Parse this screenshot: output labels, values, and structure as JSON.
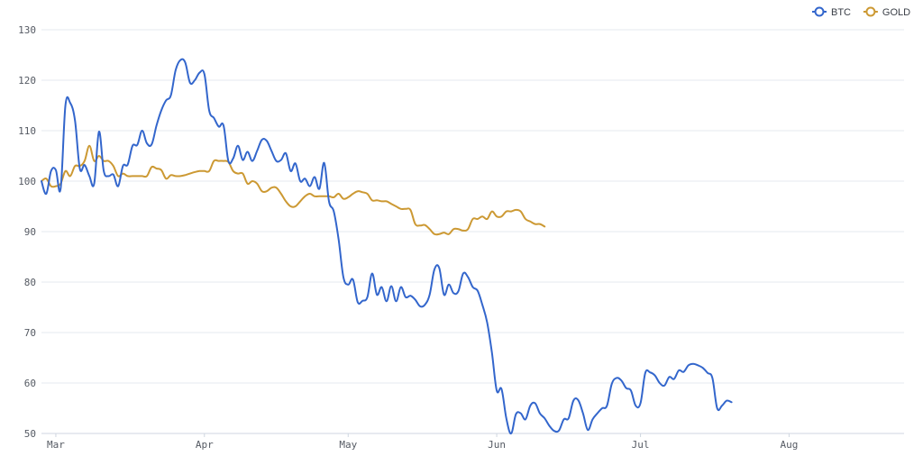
{
  "chart_data": {
    "type": "line",
    "title": "",
    "xlabel": "",
    "ylabel": "",
    "ylim": [
      50,
      130
    ],
    "yticks": [
      50,
      60,
      70,
      80,
      90,
      100,
      110,
      120,
      130
    ],
    "xlim": [
      "2022-02-26",
      "2022-08-25"
    ],
    "xticks": [
      {
        "label": "Mar",
        "date": "2022-03-01"
      },
      {
        "label": "Apr",
        "date": "2022-04-01"
      },
      {
        "label": "May",
        "date": "2022-05-01"
      },
      {
        "label": "Jun",
        "date": "2022-06-01"
      },
      {
        "label": "Jul",
        "date": "2022-07-01"
      },
      {
        "label": "Aug",
        "date": "2022-08-01"
      }
    ],
    "grid": true,
    "legend_position": "top-right",
    "series": [
      {
        "name": "BTC",
        "color": "#3366cc",
        "points": [
          [
            "2022-02-26",
            100
          ],
          [
            "2022-02-27",
            97.5
          ],
          [
            "2022-02-28",
            102
          ],
          [
            "2022-03-01",
            102.2
          ],
          [
            "2022-03-02",
            98.5
          ],
          [
            "2022-03-03",
            115
          ],
          [
            "2022-03-04",
            115.5
          ],
          [
            "2022-03-05",
            112
          ],
          [
            "2022-03-06",
            102.5
          ],
          [
            "2022-03-07",
            103.2
          ],
          [
            "2022-03-08",
            101
          ],
          [
            "2022-03-09",
            99.5
          ],
          [
            "2022-03-10",
            109.8
          ],
          [
            "2022-03-11",
            102
          ],
          [
            "2022-03-12",
            101
          ],
          [
            "2022-03-13",
            101.3
          ],
          [
            "2022-03-14",
            99
          ],
          [
            "2022-03-15",
            103
          ],
          [
            "2022-03-16",
            103.3
          ],
          [
            "2022-03-17",
            107
          ],
          [
            "2022-03-18",
            107.2
          ],
          [
            "2022-03-19",
            110
          ],
          [
            "2022-03-20",
            107.5
          ],
          [
            "2022-03-21",
            107.3
          ],
          [
            "2022-03-22",
            111
          ],
          [
            "2022-03-23",
            114
          ],
          [
            "2022-03-24",
            116
          ],
          [
            "2022-03-25",
            117
          ],
          [
            "2022-03-26",
            122
          ],
          [
            "2022-03-27",
            124
          ],
          [
            "2022-03-28",
            123.5
          ],
          [
            "2022-03-29",
            119.5
          ],
          [
            "2022-03-30",
            120
          ],
          [
            "2022-03-31",
            121.5
          ],
          [
            "2022-04-01",
            121.2
          ],
          [
            "2022-04-02",
            114
          ],
          [
            "2022-04-03",
            112.5
          ],
          [
            "2022-04-04",
            110.8
          ],
          [
            "2022-04-05",
            111
          ],
          [
            "2022-04-06",
            104
          ],
          [
            "2022-04-07",
            104.5
          ],
          [
            "2022-04-08",
            107
          ],
          [
            "2022-04-09",
            104.2
          ],
          [
            "2022-04-10",
            105.8
          ],
          [
            "2022-04-11",
            104
          ],
          [
            "2022-04-12",
            106
          ],
          [
            "2022-04-13",
            108.2
          ],
          [
            "2022-04-14",
            108
          ],
          [
            "2022-04-15",
            106
          ],
          [
            "2022-04-16",
            104
          ],
          [
            "2022-04-17",
            104.2
          ],
          [
            "2022-04-18",
            105.5
          ],
          [
            "2022-04-19",
            102
          ],
          [
            "2022-04-20",
            103.5
          ],
          [
            "2022-04-21",
            100
          ],
          [
            "2022-04-22",
            100.5
          ],
          [
            "2022-04-23",
            99
          ],
          [
            "2022-04-24",
            100.8
          ],
          [
            "2022-04-25",
            98.5
          ],
          [
            "2022-04-26",
            103.6
          ],
          [
            "2022-04-27",
            96
          ],
          [
            "2022-04-28",
            94
          ],
          [
            "2022-04-29",
            88.5
          ],
          [
            "2022-04-30",
            81
          ],
          [
            "2022-05-01",
            79.5
          ],
          [
            "2022-05-02",
            80.5
          ],
          [
            "2022-05-03",
            76
          ],
          [
            "2022-05-04",
            76.3
          ],
          [
            "2022-05-05",
            77
          ],
          [
            "2022-05-06",
            81.7
          ],
          [
            "2022-05-07",
            77.5
          ],
          [
            "2022-05-08",
            79
          ],
          [
            "2022-05-09",
            76.2
          ],
          [
            "2022-05-10",
            79.2
          ],
          [
            "2022-05-11",
            76.2
          ],
          [
            "2022-05-12",
            79
          ],
          [
            "2022-05-13",
            77
          ],
          [
            "2022-05-14",
            77.3
          ],
          [
            "2022-05-15",
            76.5
          ],
          [
            "2022-05-16",
            75.2
          ],
          [
            "2022-05-17",
            75.5
          ],
          [
            "2022-05-18",
            77.5
          ],
          [
            "2022-05-19",
            82.5
          ],
          [
            "2022-05-20",
            82.8
          ],
          [
            "2022-05-21",
            77.5
          ],
          [
            "2022-05-22",
            79.5
          ],
          [
            "2022-05-23",
            77.8
          ],
          [
            "2022-05-24",
            78.2
          ],
          [
            "2022-05-25",
            81.7
          ],
          [
            "2022-05-26",
            81
          ],
          [
            "2022-05-27",
            79
          ],
          [
            "2022-05-28",
            78.3
          ],
          [
            "2022-05-29",
            75.5
          ],
          [
            "2022-05-30",
            72
          ],
          [
            "2022-05-31",
            66
          ],
          [
            "2022-06-01",
            58.5
          ],
          [
            "2022-06-02",
            58.8
          ],
          [
            "2022-06-03",
            53
          ],
          [
            "2022-06-04",
            50
          ],
          [
            "2022-06-05",
            53.8
          ],
          [
            "2022-06-06",
            54
          ],
          [
            "2022-06-07",
            52.8
          ],
          [
            "2022-06-08",
            55.5
          ],
          [
            "2022-06-09",
            56
          ],
          [
            "2022-06-10",
            54
          ],
          [
            "2022-06-11",
            53
          ],
          [
            "2022-06-12",
            51.5
          ],
          [
            "2022-06-13",
            50.5
          ],
          [
            "2022-06-14",
            50.6
          ],
          [
            "2022-06-15",
            52.8
          ],
          [
            "2022-06-16",
            53
          ],
          [
            "2022-06-17",
            56.5
          ],
          [
            "2022-06-18",
            56.6
          ],
          [
            "2022-06-19",
            54
          ],
          [
            "2022-06-20",
            50.7
          ],
          [
            "2022-06-21",
            52.8
          ],
          [
            "2022-06-22",
            54
          ],
          [
            "2022-06-23",
            55
          ],
          [
            "2022-06-24",
            55.5
          ],
          [
            "2022-06-25",
            59.8
          ],
          [
            "2022-06-26",
            61
          ],
          [
            "2022-06-27",
            60.5
          ],
          [
            "2022-06-28",
            59
          ],
          [
            "2022-06-29",
            58.5
          ],
          [
            "2022-06-30",
            55.5
          ],
          [
            "2022-07-01",
            56
          ],
          [
            "2022-07-02",
            62
          ],
          [
            "2022-07-03",
            62.1
          ],
          [
            "2022-07-04",
            61.5
          ],
          [
            "2022-07-05",
            60
          ],
          [
            "2022-07-06",
            59.5
          ],
          [
            "2022-07-07",
            61.2
          ],
          [
            "2022-07-08",
            60.8
          ],
          [
            "2022-07-09",
            62.5
          ],
          [
            "2022-07-10",
            62.2
          ],
          [
            "2022-07-11",
            63.5
          ],
          [
            "2022-07-12",
            63.8
          ],
          [
            "2022-07-13",
            63.5
          ],
          [
            "2022-07-14",
            63
          ],
          [
            "2022-07-15",
            62
          ],
          [
            "2022-07-16",
            61
          ],
          [
            "2022-07-17",
            55
          ],
          [
            "2022-07-18",
            55.5
          ],
          [
            "2022-07-19",
            56.5
          ],
          [
            "2022-07-20",
            56.2
          ]
        ]
      },
      {
        "name": "GOLD",
        "color": "#cc9933",
        "points": [
          [
            "2022-02-26",
            100
          ],
          [
            "2022-02-27",
            100.5
          ],
          [
            "2022-02-28",
            99
          ],
          [
            "2022-03-01",
            99
          ],
          [
            "2022-03-02",
            99.5
          ],
          [
            "2022-03-03",
            102
          ],
          [
            "2022-03-04",
            101
          ],
          [
            "2022-03-05",
            103
          ],
          [
            "2022-03-06",
            103
          ],
          [
            "2022-03-07",
            104
          ],
          [
            "2022-03-08",
            107
          ],
          [
            "2022-03-09",
            104
          ],
          [
            "2022-03-10",
            105
          ],
          [
            "2022-03-11",
            104
          ],
          [
            "2022-03-12",
            104
          ],
          [
            "2022-03-13",
            103
          ],
          [
            "2022-03-14",
            101
          ],
          [
            "2022-03-15",
            101.5
          ],
          [
            "2022-03-16",
            101
          ],
          [
            "2022-03-17",
            101
          ],
          [
            "2022-03-18",
            101
          ],
          [
            "2022-03-19",
            101
          ],
          [
            "2022-03-20",
            101
          ],
          [
            "2022-03-21",
            102.8
          ],
          [
            "2022-03-22",
            102.5
          ],
          [
            "2022-03-23",
            102.2
          ],
          [
            "2022-03-24",
            100.5
          ],
          [
            "2022-03-25",
            101.2
          ],
          [
            "2022-03-26",
            101
          ],
          [
            "2022-03-27",
            101
          ],
          [
            "2022-03-28",
            101.2
          ],
          [
            "2022-03-29",
            101.5
          ],
          [
            "2022-03-30",
            101.8
          ],
          [
            "2022-03-31",
            102
          ],
          [
            "2022-04-01",
            102
          ],
          [
            "2022-04-02",
            102
          ],
          [
            "2022-04-03",
            104
          ],
          [
            "2022-04-04",
            104
          ],
          [
            "2022-04-05",
            104
          ],
          [
            "2022-04-06",
            103.8
          ],
          [
            "2022-04-07",
            102
          ],
          [
            "2022-04-08",
            101.5
          ],
          [
            "2022-04-09",
            101.5
          ],
          [
            "2022-04-10",
            99.5
          ],
          [
            "2022-04-11",
            100
          ],
          [
            "2022-04-12",
            99.5
          ],
          [
            "2022-04-13",
            98
          ],
          [
            "2022-04-14",
            98
          ],
          [
            "2022-04-15",
            98.7
          ],
          [
            "2022-04-16",
            98.7
          ],
          [
            "2022-04-17",
            97.5
          ],
          [
            "2022-04-18",
            96
          ],
          [
            "2022-04-19",
            95
          ],
          [
            "2022-04-20",
            95
          ],
          [
            "2022-04-21",
            96
          ],
          [
            "2022-04-22",
            97
          ],
          [
            "2022-04-23",
            97.5
          ],
          [
            "2022-04-24",
            97
          ],
          [
            "2022-04-25",
            97
          ],
          [
            "2022-04-26",
            97
          ],
          [
            "2022-04-27",
            97
          ],
          [
            "2022-04-28",
            96.8
          ],
          [
            "2022-04-29",
            97.5
          ],
          [
            "2022-04-30",
            96.5
          ],
          [
            "2022-05-01",
            96.8
          ],
          [
            "2022-05-02",
            97.5
          ],
          [
            "2022-05-03",
            98
          ],
          [
            "2022-05-04",
            97.8
          ],
          [
            "2022-05-05",
            97.5
          ],
          [
            "2022-05-06",
            96.2
          ],
          [
            "2022-05-07",
            96.2
          ],
          [
            "2022-05-08",
            96
          ],
          [
            "2022-05-09",
            96
          ],
          [
            "2022-05-10",
            95.5
          ],
          [
            "2022-05-11",
            95
          ],
          [
            "2022-05-12",
            94.5
          ],
          [
            "2022-05-13",
            94.5
          ],
          [
            "2022-05-14",
            94.3
          ],
          [
            "2022-05-15",
            91.5
          ],
          [
            "2022-05-16",
            91.2
          ],
          [
            "2022-05-17",
            91.3
          ],
          [
            "2022-05-18",
            90.5
          ],
          [
            "2022-05-19",
            89.5
          ],
          [
            "2022-05-20",
            89.5
          ],
          [
            "2022-05-21",
            89.8
          ],
          [
            "2022-05-22",
            89.5
          ],
          [
            "2022-05-23",
            90.5
          ],
          [
            "2022-05-24",
            90.5
          ],
          [
            "2022-05-25",
            90.2
          ],
          [
            "2022-05-26",
            90.5
          ],
          [
            "2022-05-27",
            92.5
          ],
          [
            "2022-05-28",
            92.5
          ],
          [
            "2022-05-29",
            93
          ],
          [
            "2022-05-30",
            92.5
          ],
          [
            "2022-05-31",
            94
          ],
          [
            "2022-06-01",
            93
          ],
          [
            "2022-06-02",
            93
          ],
          [
            "2022-06-03",
            94
          ],
          [
            "2022-06-04",
            94
          ],
          [
            "2022-06-05",
            94.3
          ],
          [
            "2022-06-06",
            94
          ],
          [
            "2022-06-07",
            92.5
          ],
          [
            "2022-06-08",
            92
          ],
          [
            "2022-06-09",
            91.5
          ],
          [
            "2022-06-10",
            91.5
          ],
          [
            "2022-06-11",
            91
          ]
        ]
      }
    ]
  }
}
